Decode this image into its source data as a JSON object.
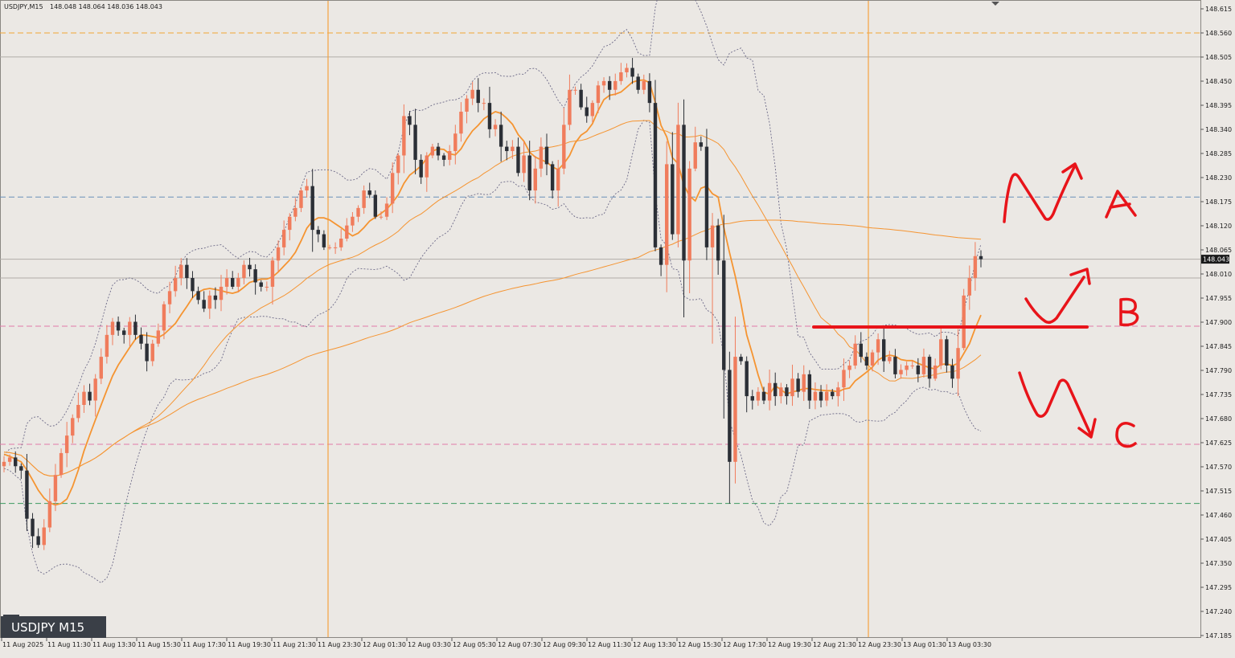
{
  "header": {
    "symbol_info": "USDJPY,M15",
    "ohlc": "148.048 148.064 148.036 148.043"
  },
  "badge": {
    "label": "USDJPY M15"
  },
  "price_axis": {
    "labels": [
      "148.615",
      "148.560",
      "148.505",
      "148.450",
      "148.395",
      "148.340",
      "148.285",
      "148.230",
      "148.175",
      "148.120",
      "148.065",
      "148.010",
      "147.955",
      "147.900",
      "147.845",
      "147.790",
      "147.735",
      "147.680",
      "147.625",
      "147.570",
      "147.515",
      "147.460",
      "147.405",
      "147.350",
      "147.295",
      "147.240",
      "147.185"
    ],
    "current_price": "148.043"
  },
  "time_axis": {
    "labels": [
      "11 Aug 2025",
      "11 Aug 11:30",
      "11 Aug 13:30",
      "11 Aug 15:30",
      "11 Aug 17:30",
      "11 Aug 19:30",
      "11 Aug 21:30",
      "11 Aug 23:30",
      "12 Aug 01:30",
      "12 Aug 03:30",
      "12 Aug 05:30",
      "12 Aug 07:30",
      "12 Aug 09:30",
      "12 Aug 11:30",
      "12 Aug 13:30",
      "12 Aug 15:30",
      "12 Aug 17:30",
      "12 Aug 19:30",
      "12 Aug 21:30",
      "12 Aug 23:30",
      "13 Aug 01:30",
      "13 Aug 03:30"
    ]
  },
  "annotations": {
    "a": "A",
    "b": "B",
    "c": "C"
  },
  "colors": {
    "background": "#ebe8e4",
    "bull": "#f07c5c",
    "bear": "#2b2f36",
    "ma": "#f59431",
    "bands": "#6d6a88",
    "annotation": "#e8141a"
  },
  "chart_data": {
    "type": "candlestick",
    "symbol": "USDJPY",
    "timeframe": "M15",
    "ylim": [
      147.185,
      148.64
    ],
    "current_price": 148.043,
    "horizontal_levels": [
      {
        "price": 148.56,
        "style": "orange-dashed"
      },
      {
        "price": 148.505,
        "style": "gray-solid"
      },
      {
        "price": 148.185,
        "style": "blue-dashed"
      },
      {
        "price": 148.043,
        "style": "gray-solid"
      },
      {
        "price": 148.0,
        "style": "gray-solid"
      },
      {
        "price": 147.89,
        "style": "pink-dashed"
      },
      {
        "price": 147.62,
        "style": "pink-dashed"
      },
      {
        "price": 147.485,
        "style": "green-dashed"
      }
    ],
    "vertical_separators": [
      "11 Aug 23:30",
      "12 Aug 23:30"
    ],
    "drawn_level": 147.89,
    "closes": [
      147.58,
      147.59,
      147.57,
      147.56,
      147.45,
      147.41,
      147.39,
      147.43,
      147.49,
      147.55,
      147.6,
      147.64,
      147.68,
      147.71,
      147.74,
      147.72,
      147.77,
      147.82,
      147.87,
      147.9,
      147.88,
      147.87,
      147.9,
      147.87,
      147.85,
      147.81,
      147.85,
      147.88,
      147.94,
      147.97,
      148.0,
      148.03,
      148.0,
      147.97,
      147.95,
      147.93,
      147.96,
      147.95,
      147.98,
      148.0,
      147.98,
      148.0,
      148.03,
      148.02,
      147.99,
      147.98,
      147.98,
      148.04,
      148.07,
      148.11,
      148.14,
      148.16,
      148.2,
      148.21,
      148.11,
      148.1,
      148.07,
      148.07,
      148.07,
      148.09,
      148.12,
      148.14,
      148.16,
      148.2,
      148.19,
      148.14,
      148.14,
      148.17,
      148.24,
      148.28,
      148.37,
      148.35,
      148.27,
      148.23,
      148.28,
      148.3,
      148.28,
      148.27,
      148.29,
      148.33,
      148.38,
      148.41,
      148.43,
      148.4,
      148.4,
      148.34,
      148.35,
      148.3,
      148.29,
      148.3,
      148.24,
      148.28,
      148.2,
      148.25,
      148.3,
      148.26,
      148.2,
      148.25,
      148.35,
      148.43,
      148.43,
      148.39,
      148.37,
      148.4,
      148.44,
      148.45,
      148.43,
      148.45,
      148.47,
      148.48,
      148.46,
      148.43,
      148.45,
      148.4,
      148.07,
      148.03,
      148.26,
      148.1,
      148.35,
      148.04,
      148.25,
      148.31,
      148.3,
      148.07,
      148.12,
      148.04,
      147.79,
      147.58,
      147.82,
      147.81,
      147.73,
      147.72,
      147.74,
      147.72,
      147.76,
      147.73,
      147.75,
      147.73,
      147.77,
      147.74,
      147.78,
      147.72,
      147.74,
      147.72,
      147.74,
      147.73,
      147.75,
      147.79,
      147.8,
      147.85,
      147.82,
      147.8,
      147.83,
      147.86,
      147.81,
      147.82,
      147.78,
      147.79,
      147.8,
      147.8,
      147.78,
      147.82,
      147.77,
      147.8,
      147.86,
      147.8,
      147.77,
      147.84,
      147.96,
      148.0,
      148.05,
      148.043
    ]
  }
}
